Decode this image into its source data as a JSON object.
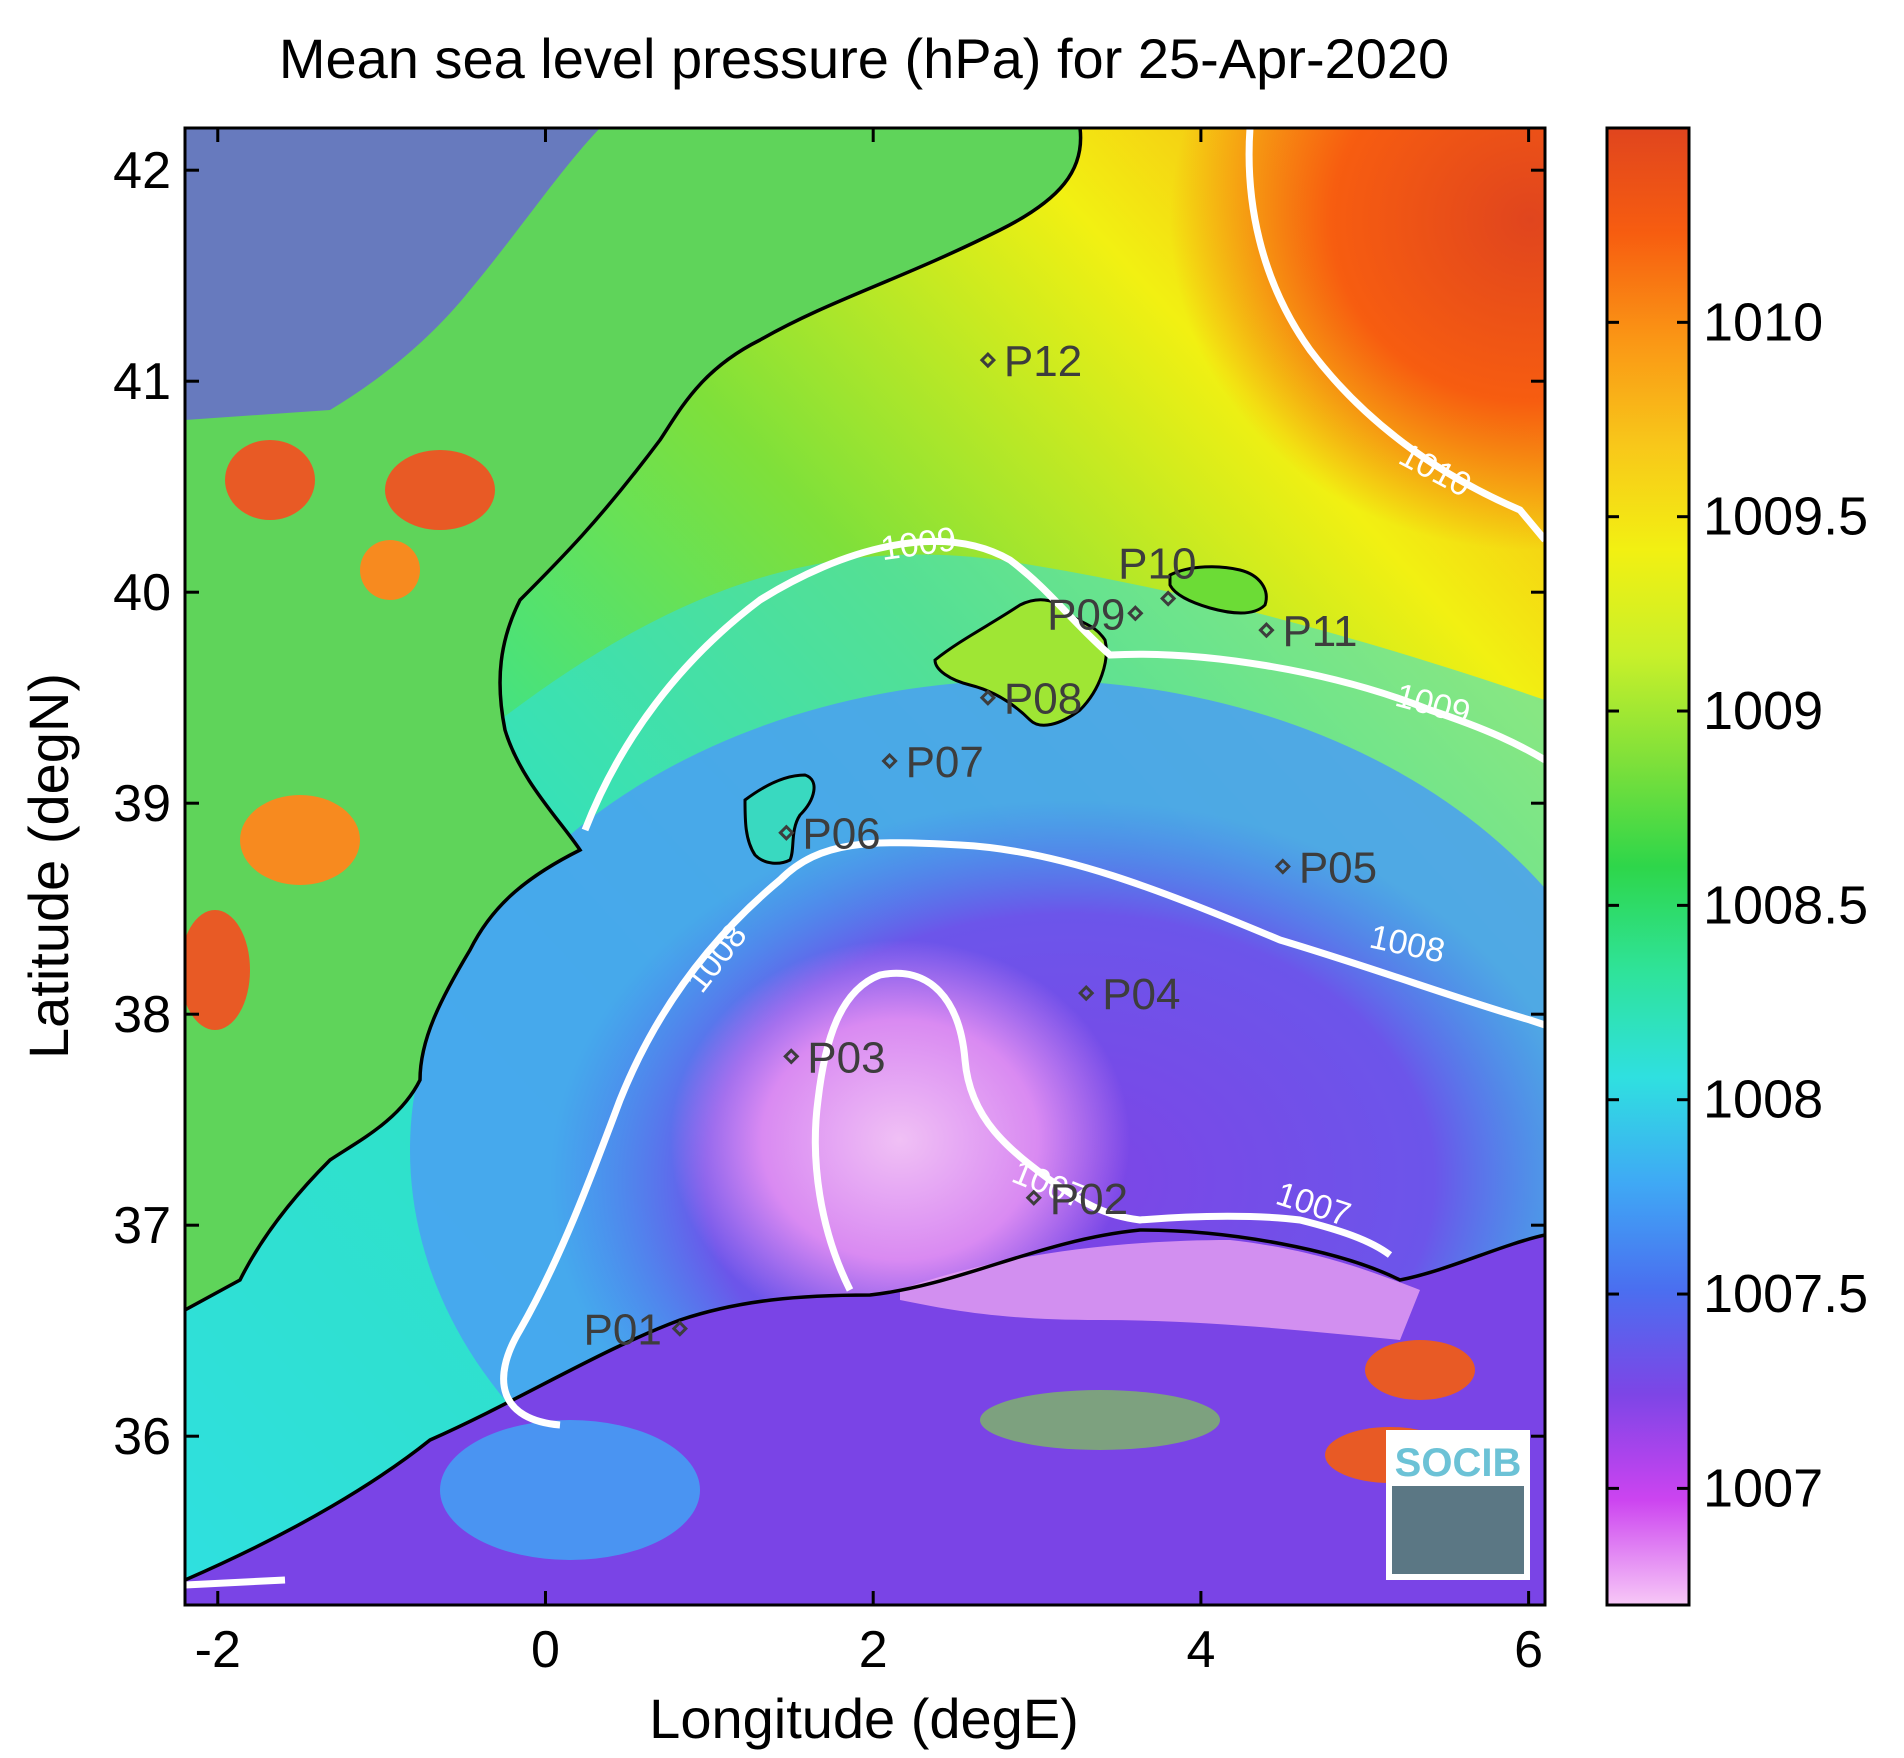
{
  "title": "Mean sea level pressure (hPa) for 25-Apr-2020",
  "axes": {
    "xlabel": "Longitude (degE)",
    "ylabel": "Latitude (degN)",
    "xlim": [
      -2.2,
      6.1
    ],
    "ylim": [
      35.2,
      42.2
    ],
    "xticks": [
      -2,
      0,
      2,
      4,
      6
    ],
    "yticks": [
      36,
      37,
      38,
      39,
      40,
      41,
      42
    ]
  },
  "colorbar": {
    "range": [
      1006.7,
      1010.5
    ],
    "ticks": [
      "1007",
      "1007.5",
      "1008",
      "1008.5",
      "1009",
      "1009.5",
      "1010"
    ],
    "tick_values": [
      1007,
      1007.5,
      1008,
      1008.5,
      1009,
      1009.5,
      1010
    ]
  },
  "colormap": [
    "#f7c8f7",
    "#cc44f0",
    "#7d45e6",
    "#4a6ff0",
    "#3fa9f5",
    "#2fe0e0",
    "#2fe39a",
    "#2ed64a",
    "#7fe03a",
    "#c8f02a",
    "#f2f012",
    "#f8c71a",
    "#fa9615",
    "#f75d10",
    "#e0451e"
  ],
  "contours": [
    {
      "value": 1007,
      "label": "1007"
    },
    {
      "value": 1008,
      "label": "1008"
    },
    {
      "value": 1009,
      "label": "1009"
    },
    {
      "value": 1010,
      "label": "1010"
    }
  ],
  "stations": [
    {
      "id": "P01",
      "lon": 0.82,
      "lat": 36.51
    },
    {
      "id": "P02",
      "lon": 2.98,
      "lat": 37.13
    },
    {
      "id": "P03",
      "lon": 1.5,
      "lat": 37.8
    },
    {
      "id": "P04",
      "lon": 3.3,
      "lat": 38.1
    },
    {
      "id": "P05",
      "lon": 4.5,
      "lat": 38.7
    },
    {
      "id": "P06",
      "lon": 1.47,
      "lat": 38.86
    },
    {
      "id": "P07",
      "lon": 2.1,
      "lat": 39.2
    },
    {
      "id": "P08",
      "lon": 2.7,
      "lat": 39.5
    },
    {
      "id": "P09",
      "lon": 3.6,
      "lat": 39.9
    },
    {
      "id": "P10",
      "lon": 3.8,
      "lat": 39.97
    },
    {
      "id": "P11",
      "lon": 4.4,
      "lat": 39.82
    },
    {
      "id": "P12",
      "lon": 2.7,
      "lat": 41.1
    }
  ],
  "logo": {
    "text": "SOCIB"
  }
}
